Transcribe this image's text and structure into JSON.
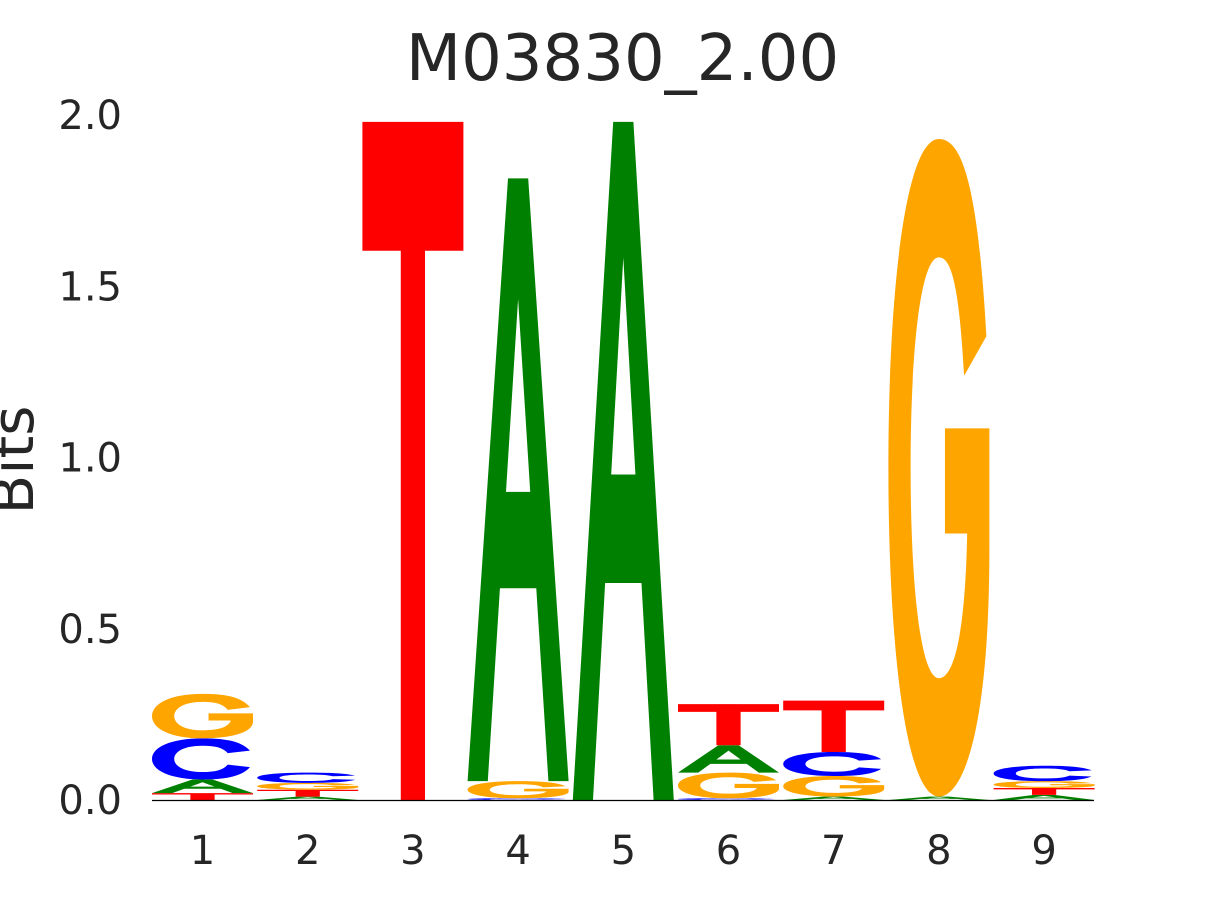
{
  "chart_data": {
    "type": "sequence-logo",
    "title": "M03830_2.00",
    "ylabel": "Bits",
    "xlabel": "",
    "ylim": [
      0,
      2
    ],
    "yticks": [
      "0.0",
      "0.5",
      "1.0",
      "1.5",
      "2.0"
    ],
    "positions": [
      "1",
      "2",
      "3",
      "4",
      "5",
      "6",
      "7",
      "8",
      "9"
    ],
    "grid": false,
    "colors": {
      "A": "#008000",
      "C": "#0000ff",
      "G": "#ffa500",
      "T": "#ff0000"
    },
    "stacks": [
      [
        {
          "base": "T",
          "bits": 0.02
        },
        {
          "base": "A",
          "bits": 0.04
        },
        {
          "base": "C",
          "bits": 0.12
        },
        {
          "base": "G",
          "bits": 0.13
        }
      ],
      [
        {
          "base": "A",
          "bits": 0.01
        },
        {
          "base": "T",
          "bits": 0.02
        },
        {
          "base": "G",
          "bits": 0.02
        },
        {
          "base": "C",
          "bits": 0.03
        }
      ],
      [
        {
          "base": "T",
          "bits": 1.98
        }
      ],
      [
        {
          "base": "C",
          "bits": 0.005
        },
        {
          "base": "G",
          "bits": 0.05
        },
        {
          "base": "A",
          "bits": 1.76
        }
      ],
      [
        {
          "base": "A",
          "bits": 1.98
        }
      ],
      [
        {
          "base": "C",
          "bits": 0.005
        },
        {
          "base": "G",
          "bits": 0.075
        },
        {
          "base": "A",
          "bits": 0.08
        },
        {
          "base": "T",
          "bits": 0.12
        }
      ],
      [
        {
          "base": "A",
          "bits": 0.01
        },
        {
          "base": "G",
          "bits": 0.06
        },
        {
          "base": "C",
          "bits": 0.07
        },
        {
          "base": "T",
          "bits": 0.15
        }
      ],
      [
        {
          "base": "A",
          "bits": 0.01
        },
        {
          "base": "G",
          "bits": 1.92
        }
      ],
      [
        {
          "base": "A",
          "bits": 0.015
        },
        {
          "base": "T",
          "bits": 0.02
        },
        {
          "base": "G",
          "bits": 0.02
        },
        {
          "base": "C",
          "bits": 0.045
        }
      ]
    ]
  }
}
